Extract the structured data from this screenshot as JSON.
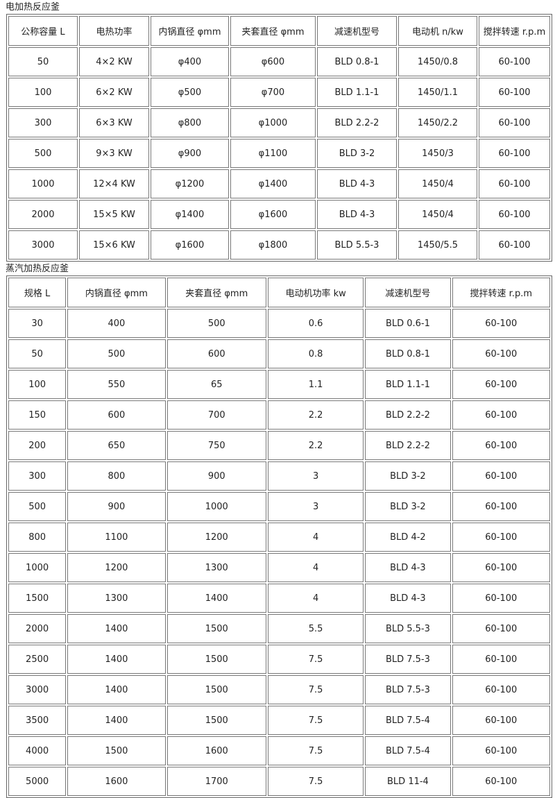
{
  "tables": [
    {
      "title": "电加热反应釜",
      "header": [
        "公称容量 L",
        "电热功率",
        "内锅直径 φmm",
        "夹套直径 φmm",
        "减速机型号",
        "电动机 n/kw",
        "搅拌转速 r.p.m"
      ],
      "rows": [
        [
          "50",
          "4×2 KW",
          "φ400",
          "φ600",
          "BLD 0.8-1",
          "1450/0.8",
          "60-100"
        ],
        [
          "100",
          "6×2 KW",
          "φ500",
          "φ700",
          "BLD 1.1-1",
          "1450/1.1",
          "60-100"
        ],
        [
          "300",
          "6×3 KW",
          "φ800",
          "φ1000",
          "BLD 2.2-2",
          "1450/2.2",
          "60-100"
        ],
        [
          "500",
          "9×3 KW",
          "φ900",
          "φ1100",
          "BLD 3-2",
          "1450/3",
          "60-100"
        ],
        [
          "1000",
          "12×4 KW",
          "φ1200",
          "φ1400",
          "BLD 4-3",
          "1450/4",
          "60-100"
        ],
        [
          "2000",
          "15×5 KW",
          "φ1400",
          "φ1600",
          "BLD 4-3",
          "1450/4",
          "60-100"
        ],
        [
          "3000",
          "15×6 KW",
          "φ1600",
          "φ1800",
          "BLD 5.5-3",
          "1450/5.5",
          "60-100"
        ]
      ]
    },
    {
      "title": "蒸汽加热反应釜",
      "header": [
        "规格 L",
        "内锅直径 φmm",
        "夹套直径 φmm",
        "电动机功率 kw",
        "减速机型号",
        "搅拌转速 r.p.m"
      ],
      "rows": [
        [
          "30",
          "400",
          "500",
          "0.6",
          "BLD 0.6-1",
          "60-100"
        ],
        [
          "50",
          "500",
          "600",
          "0.8",
          "BLD 0.8-1",
          "60-100"
        ],
        [
          "100",
          "550",
          "65",
          "1.1",
          "BLD 1.1-1",
          "60-100"
        ],
        [
          "150",
          "600",
          "700",
          "2.2",
          "BLD 2.2-2",
          "60-100"
        ],
        [
          "200",
          "650",
          "750",
          "2.2",
          "BLD 2.2-2",
          "60-100"
        ],
        [
          "300",
          "800",
          "900",
          "3",
          "BLD 3-2",
          "60-100"
        ],
        [
          "500",
          "900",
          "1000",
          "3",
          "BLD 3-2",
          "60-100"
        ],
        [
          "800",
          "1100",
          "1200",
          "4",
          "BLD 4-2",
          "60-100"
        ],
        [
          "1000",
          "1200",
          "1300",
          "4",
          "BLD 4-3",
          "60-100"
        ],
        [
          "1500",
          "1300",
          "1400",
          "4",
          "BLD 4-3",
          "60-100"
        ],
        [
          "2000",
          "1400",
          "1500",
          "5.5",
          "BLD 5.5-3",
          "60-100"
        ],
        [
          "2500",
          "1400",
          "1500",
          "7.5",
          "BLD 7.5-3",
          "60-100"
        ],
        [
          "3000",
          "1400",
          "1500",
          "7.5",
          "BLD 7.5-3",
          "60-100"
        ],
        [
          "3500",
          "1400",
          "1500",
          "7.5",
          "BLD 7.5-4",
          "60-100"
        ],
        [
          "4000",
          "1500",
          "1600",
          "7.5",
          "BLD 7.5-4",
          "60-100"
        ],
        [
          "5000",
          "1600",
          "1700",
          "7.5",
          "BLD 11-4",
          "60-100"
        ]
      ]
    }
  ]
}
